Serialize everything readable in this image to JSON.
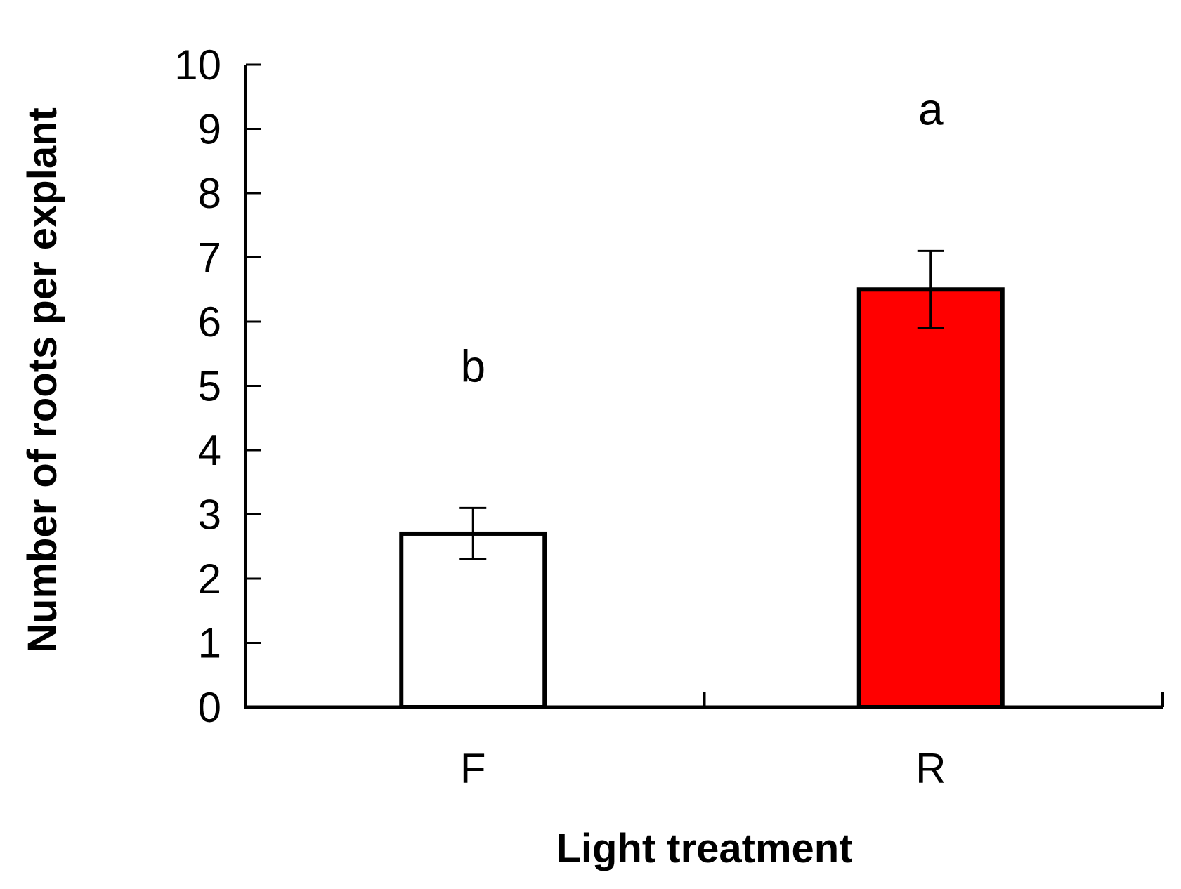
{
  "chart_data": {
    "type": "bar",
    "title": "",
    "xlabel": "Light treatment",
    "ylabel": "Number of roots per explant",
    "categories": [
      "F",
      "R"
    ],
    "values": [
      2.7,
      6.5
    ],
    "errors": [
      0.4,
      0.6
    ],
    "significance_letters": [
      "b",
      "a"
    ],
    "bar_colors": [
      "#ffffff",
      "#ff0000"
    ],
    "ylim": [
      0,
      10
    ],
    "yticks": [
      "0",
      "1",
      "2",
      "3",
      "4",
      "5",
      "6",
      "7",
      "8",
      "9",
      "10"
    ],
    "grid": false,
    "legend": "none"
  }
}
